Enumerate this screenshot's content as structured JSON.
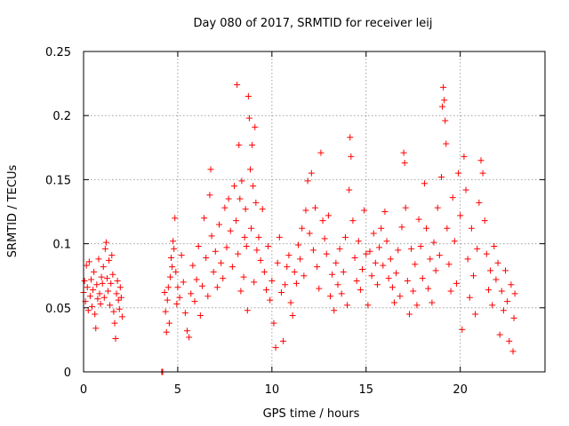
{
  "chart_data": {
    "type": "scatter",
    "title": "Day 080 of 2017, SRMTID for receiver leij",
    "xlabel": "GPS time / hours",
    "ylabel": "SRMTID / TECUs",
    "xlim": [
      0,
      24.5
    ],
    "ylim": [
      0,
      0.25
    ],
    "xticks": [
      0,
      5,
      10,
      15,
      20
    ],
    "xtick_labels": [
      "0",
      "5",
      "10",
      "15",
      "20"
    ],
    "yticks": [
      0,
      0.05,
      0.1,
      0.15,
      0.2,
      0.25
    ],
    "ytick_labels": [
      "0",
      "0.05",
      "0.1",
      "0.15",
      "0.2",
      "0.25"
    ],
    "grid": true,
    "marker": "+",
    "color": "#ff0000",
    "series": [
      {
        "name": "SRMTID",
        "points": [
          [
            0.0,
            0.062
          ],
          [
            0.05,
            0.071
          ],
          [
            0.1,
            0.055
          ],
          [
            0.15,
            0.083
          ],
          [
            0.2,
            0.066
          ],
          [
            0.25,
            0.048
          ],
          [
            0.3,
            0.086
          ],
          [
            0.35,
            0.059
          ],
          [
            0.4,
            0.072
          ],
          [
            0.45,
            0.051
          ],
          [
            0.5,
            0.064
          ],
          [
            0.55,
            0.078
          ],
          [
            0.6,
            0.045
          ],
          [
            0.65,
            0.034
          ],
          [
            0.7,
            0.068
          ],
          [
            0.75,
            0.057
          ],
          [
            0.8,
            0.088
          ],
          [
            0.85,
            0.061
          ],
          [
            0.9,
            0.053
          ],
          [
            0.95,
            0.074
          ],
          [
            1.0,
            0.069
          ],
          [
            1.05,
            0.082
          ],
          [
            1.1,
            0.058
          ],
          [
            1.15,
            0.096
          ],
          [
            1.2,
            0.101
          ],
          [
            1.25,
            0.073
          ],
          [
            1.3,
            0.063
          ],
          [
            1.35,
            0.087
          ],
          [
            1.4,
            0.052
          ],
          [
            1.45,
            0.069
          ],
          [
            1.5,
            0.091
          ],
          [
            1.55,
            0.076
          ],
          [
            1.6,
            0.047
          ],
          [
            1.65,
            0.038
          ],
          [
            1.7,
            0.026
          ],
          [
            1.75,
            0.061
          ],
          [
            1.8,
            0.071
          ],
          [
            1.85,
            0.056
          ],
          [
            1.9,
            0.049
          ],
          [
            1.95,
            0.066
          ],
          [
            2.0,
            0.058
          ],
          [
            2.05,
            0.043
          ],
          [
            4.15,
            0.0
          ],
          [
            4.17,
            0.0
          ],
          [
            4.2,
            0.0
          ],
          [
            4.3,
            0.062
          ],
          [
            4.35,
            0.047
          ],
          [
            4.4,
            0.031
          ],
          [
            4.45,
            0.056
          ],
          [
            4.5,
            0.066
          ],
          [
            4.55,
            0.038
          ],
          [
            4.6,
            0.074
          ],
          [
            4.65,
            0.089
          ],
          [
            4.7,
            0.082
          ],
          [
            4.75,
            0.102
          ],
          [
            4.8,
            0.096
          ],
          [
            4.85,
            0.12
          ],
          [
            4.9,
            0.078
          ],
          [
            4.95,
            0.053
          ],
          [
            5.0,
            0.066
          ],
          [
            5.1,
            0.058
          ],
          [
            5.2,
            0.091
          ],
          [
            5.3,
            0.07
          ],
          [
            5.4,
            0.046
          ],
          [
            5.5,
            0.032
          ],
          [
            5.6,
            0.027
          ],
          [
            5.7,
            0.061
          ],
          [
            5.8,
            0.083
          ],
          [
            5.9,
            0.055
          ],
          [
            6.0,
            0.072
          ],
          [
            6.1,
            0.098
          ],
          [
            6.2,
            0.044
          ],
          [
            6.3,
            0.067
          ],
          [
            6.4,
            0.12
          ],
          [
            6.5,
            0.089
          ],
          [
            6.6,
            0.059
          ],
          [
            6.7,
            0.138
          ],
          [
            6.75,
            0.158
          ],
          [
            6.8,
            0.106
          ],
          [
            6.9,
            0.078
          ],
          [
            7.0,
            0.094
          ],
          [
            7.1,
            0.066
          ],
          [
            7.2,
            0.115
          ],
          [
            7.3,
            0.085
          ],
          [
            7.4,
            0.073
          ],
          [
            7.5,
            0.128
          ],
          [
            7.6,
            0.097
          ],
          [
            7.7,
            0.135
          ],
          [
            7.8,
            0.11
          ],
          [
            7.9,
            0.082
          ],
          [
            8.0,
            0.145
          ],
          [
            8.1,
            0.118
          ],
          [
            8.15,
            0.224
          ],
          [
            8.2,
            0.092
          ],
          [
            8.25,
            0.177
          ],
          [
            8.3,
            0.135
          ],
          [
            8.35,
            0.063
          ],
          [
            8.4,
            0.149
          ],
          [
            8.5,
            0.074
          ],
          [
            8.55,
            0.105
          ],
          [
            8.6,
            0.127
          ],
          [
            8.65,
            0.098
          ],
          [
            8.7,
            0.048
          ],
          [
            8.75,
            0.215
          ],
          [
            8.8,
            0.198
          ],
          [
            8.85,
            0.158
          ],
          [
            8.9,
            0.112
          ],
          [
            8.95,
            0.177
          ],
          [
            9.0,
            0.145
          ],
          [
            9.05,
            0.07
          ],
          [
            9.1,
            0.191
          ],
          [
            9.15,
            0.132
          ],
          [
            9.2,
            0.095
          ],
          [
            9.3,
            0.105
          ],
          [
            9.4,
            0.087
          ],
          [
            9.5,
            0.127
          ],
          [
            9.6,
            0.078
          ],
          [
            9.7,
            0.064
          ],
          [
            9.8,
            0.098
          ],
          [
            9.9,
            0.056
          ],
          [
            10.0,
            0.071
          ],
          [
            10.1,
            0.038
          ],
          [
            10.2,
            0.019
          ],
          [
            10.3,
            0.085
          ],
          [
            10.4,
            0.105
          ],
          [
            10.5,
            0.062
          ],
          [
            10.6,
            0.024
          ],
          [
            10.7,
            0.068
          ],
          [
            10.8,
            0.082
          ],
          [
            10.9,
            0.091
          ],
          [
            11.0,
            0.054
          ],
          [
            11.1,
            0.044
          ],
          [
            11.2,
            0.078
          ],
          [
            11.3,
            0.069
          ],
          [
            11.4,
            0.099
          ],
          [
            11.5,
            0.088
          ],
          [
            11.6,
            0.112
          ],
          [
            11.7,
            0.075
          ],
          [
            11.8,
            0.126
          ],
          [
            11.9,
            0.149
          ],
          [
            12.0,
            0.108
          ],
          [
            12.1,
            0.155
          ],
          [
            12.2,
            0.095
          ],
          [
            12.3,
            0.128
          ],
          [
            12.4,
            0.082
          ],
          [
            12.5,
            0.065
          ],
          [
            12.6,
            0.171
          ],
          [
            12.7,
            0.118
          ],
          [
            12.8,
            0.104
          ],
          [
            12.9,
            0.092
          ],
          [
            13.0,
            0.122
          ],
          [
            13.1,
            0.059
          ],
          [
            13.2,
            0.076
          ],
          [
            13.3,
            0.048
          ],
          [
            13.4,
            0.085
          ],
          [
            13.5,
            0.068
          ],
          [
            13.6,
            0.096
          ],
          [
            13.7,
            0.061
          ],
          [
            13.8,
            0.078
          ],
          [
            13.9,
            0.105
          ],
          [
            14.0,
            0.052
          ],
          [
            14.1,
            0.142
          ],
          [
            14.15,
            0.183
          ],
          [
            14.2,
            0.168
          ],
          [
            14.3,
            0.118
          ],
          [
            14.4,
            0.089
          ],
          [
            14.5,
            0.071
          ],
          [
            14.6,
            0.102
          ],
          [
            14.7,
            0.064
          ],
          [
            14.8,
            0.08
          ],
          [
            14.9,
            0.126
          ],
          [
            15.0,
            0.092
          ],
          [
            15.1,
            0.052
          ],
          [
            15.2,
            0.094
          ],
          [
            15.3,
            0.075
          ],
          [
            15.4,
            0.108
          ],
          [
            15.5,
            0.085
          ],
          [
            15.6,
            0.068
          ],
          [
            15.7,
            0.097
          ],
          [
            15.8,
            0.112
          ],
          [
            15.9,
            0.083
          ],
          [
            16.0,
            0.125
          ],
          [
            16.1,
            0.102
          ],
          [
            16.2,
            0.073
          ],
          [
            16.3,
            0.088
          ],
          [
            16.4,
            0.066
          ],
          [
            16.5,
            0.054
          ],
          [
            16.6,
            0.077
          ],
          [
            16.7,
            0.095
          ],
          [
            16.8,
            0.059
          ],
          [
            16.9,
            0.113
          ],
          [
            17.0,
            0.171
          ],
          [
            17.05,
            0.163
          ],
          [
            17.1,
            0.128
          ],
          [
            17.2,
            0.071
          ],
          [
            17.3,
            0.045
          ],
          [
            17.4,
            0.096
          ],
          [
            17.5,
            0.063
          ],
          [
            17.6,
            0.084
          ],
          [
            17.7,
            0.052
          ],
          [
            17.8,
            0.119
          ],
          [
            17.9,
            0.098
          ],
          [
            18.0,
            0.073
          ],
          [
            18.1,
            0.147
          ],
          [
            18.2,
            0.112
          ],
          [
            18.3,
            0.065
          ],
          [
            18.4,
            0.088
          ],
          [
            18.5,
            0.054
          ],
          [
            18.6,
            0.101
          ],
          [
            18.7,
            0.079
          ],
          [
            18.8,
            0.128
          ],
          [
            18.9,
            0.091
          ],
          [
            19.0,
            0.152
          ],
          [
            19.05,
            0.207
          ],
          [
            19.1,
            0.222
          ],
          [
            19.15,
            0.212
          ],
          [
            19.2,
            0.196
          ],
          [
            19.25,
            0.178
          ],
          [
            19.3,
            0.112
          ],
          [
            19.4,
            0.084
          ],
          [
            19.5,
            0.063
          ],
          [
            19.6,
            0.136
          ],
          [
            19.7,
            0.102
          ],
          [
            19.8,
            0.069
          ],
          [
            19.9,
            0.155
          ],
          [
            20.0,
            0.122
          ],
          [
            20.1,
            0.033
          ],
          [
            20.2,
            0.168
          ],
          [
            20.3,
            0.142
          ],
          [
            20.4,
            0.088
          ],
          [
            20.5,
            0.058
          ],
          [
            20.6,
            0.112
          ],
          [
            20.7,
            0.075
          ],
          [
            20.8,
            0.045
          ],
          [
            20.9,
            0.096
          ],
          [
            21.0,
            0.132
          ],
          [
            21.1,
            0.165
          ],
          [
            21.2,
            0.155
          ],
          [
            21.3,
            0.118
          ],
          [
            21.4,
            0.092
          ],
          [
            21.5,
            0.064
          ],
          [
            21.6,
            0.079
          ],
          [
            21.7,
            0.052
          ],
          [
            21.8,
            0.098
          ],
          [
            21.9,
            0.072
          ],
          [
            22.0,
            0.085
          ],
          [
            22.1,
            0.029
          ],
          [
            22.2,
            0.063
          ],
          [
            22.3,
            0.048
          ],
          [
            22.4,
            0.079
          ],
          [
            22.5,
            0.055
          ],
          [
            22.6,
            0.024
          ],
          [
            22.7,
            0.068
          ],
          [
            22.8,
            0.016
          ],
          [
            22.85,
            0.042
          ],
          [
            22.9,
            0.061
          ]
        ]
      }
    ]
  }
}
